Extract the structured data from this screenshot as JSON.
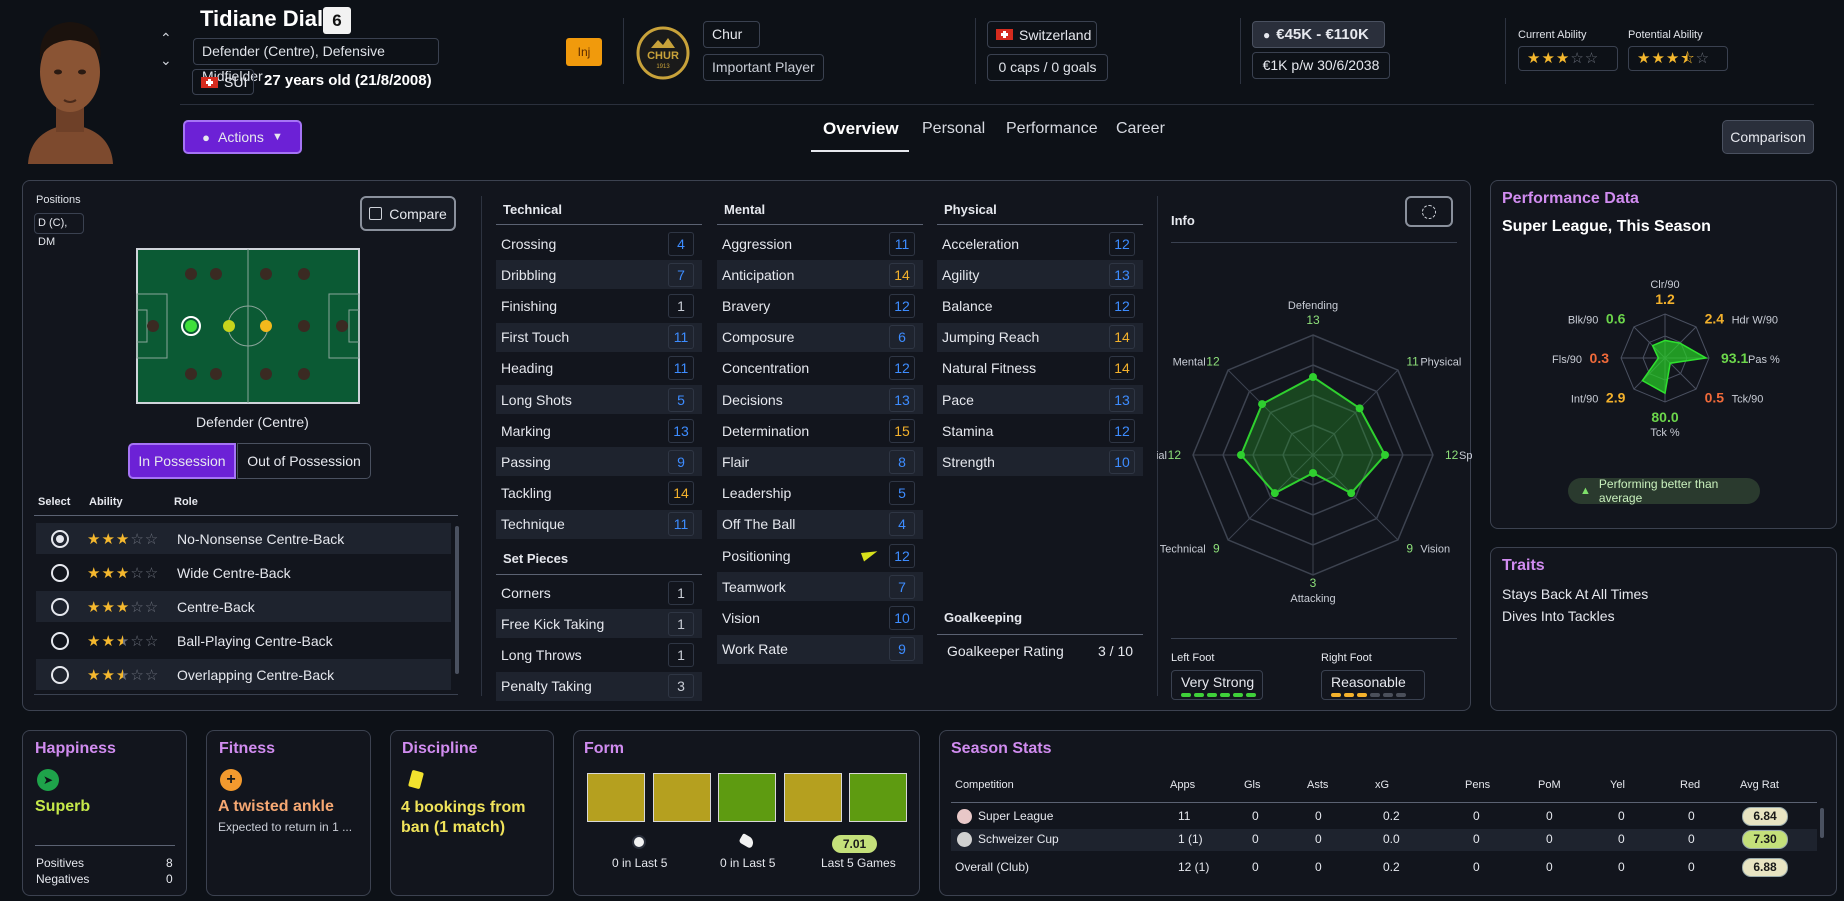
{
  "player": {
    "name": "Tidiane Diallo",
    "number": "6",
    "position": "Defender (Centre), Defensive Midfielder",
    "nation_code": "SUI",
    "age": "27 years old (21/8/2008)",
    "inj_badge": "Inj",
    "club": "Chur",
    "club_crest_text": "CHUR",
    "club_crest_year": "1913",
    "squad_status": "Important Player",
    "nationality": "Switzerland",
    "caps": "0 caps / 0 goals",
    "value": "€45K - €110K",
    "contract": "€1K p/w 30/6/2038",
    "ca_label": "Current Ability",
    "pa_label": "Potential Ability",
    "ca_stars": 3,
    "pa_stars": 3.5
  },
  "nav": {
    "actions": "Actions",
    "tabs": [
      "Overview",
      "Personal",
      "Performance",
      "Career"
    ],
    "comparison": "Comparison"
  },
  "positions": {
    "label": "Positions",
    "code": "D (C), DM",
    "compare": "Compare",
    "selected_position": "Defender (Centre)",
    "in_possession": "In Possession",
    "out_possession": "Out of Possession",
    "col_select": "Select",
    "col_ability": "Ability",
    "col_role": "Role",
    "roles": [
      {
        "name": "No-Nonsense Centre-Back",
        "stars": 3,
        "selected": true
      },
      {
        "name": "Wide Centre-Back",
        "stars": 3,
        "selected": false
      },
      {
        "name": "Centre-Back",
        "stars": 3,
        "selected": false
      },
      {
        "name": "Ball-Playing Centre-Back",
        "stars": 2.5,
        "selected": false
      },
      {
        "name": "Overlapping Centre-Back",
        "stars": 2.5,
        "selected": false
      }
    ]
  },
  "technical": {
    "title": "Technical",
    "attrs": [
      {
        "name": "Crossing",
        "value": "4",
        "color": "#3d8cff"
      },
      {
        "name": "Dribbling",
        "value": "7",
        "color": "#3d8cff"
      },
      {
        "name": "Finishing",
        "value": "1",
        "color": "#c9cdd6"
      },
      {
        "name": "First Touch",
        "value": "11",
        "color": "#3d8cff"
      },
      {
        "name": "Heading",
        "value": "11",
        "color": "#3d8cff"
      },
      {
        "name": "Long Shots",
        "value": "5",
        "color": "#3d8cff"
      },
      {
        "name": "Marking",
        "value": "13",
        "color": "#3d8cff"
      },
      {
        "name": "Passing",
        "value": "9",
        "color": "#3d8cff"
      },
      {
        "name": "Tackling",
        "value": "14",
        "color": "#f3b12c"
      },
      {
        "name": "Technique",
        "value": "11",
        "color": "#3d8cff"
      }
    ]
  },
  "set_pieces": {
    "title": "Set Pieces",
    "attrs": [
      {
        "name": "Corners",
        "value": "1",
        "color": "#c9cdd6"
      },
      {
        "name": "Free Kick Taking",
        "value": "1",
        "color": "#c9cdd6"
      },
      {
        "name": "Long Throws",
        "value": "1",
        "color": "#c9cdd6"
      },
      {
        "name": "Penalty Taking",
        "value": "3",
        "color": "#c9cdd6"
      }
    ]
  },
  "mental": {
    "title": "Mental",
    "attrs": [
      {
        "name": "Aggression",
        "value": "11",
        "color": "#3d8cff"
      },
      {
        "name": "Anticipation",
        "value": "14",
        "color": "#f3b12c"
      },
      {
        "name": "Bravery",
        "value": "12",
        "color": "#3d8cff"
      },
      {
        "name": "Composure",
        "value": "6",
        "color": "#3d8cff"
      },
      {
        "name": "Concentration",
        "value": "12",
        "color": "#3d8cff"
      },
      {
        "name": "Decisions",
        "value": "13",
        "color": "#3d8cff"
      },
      {
        "name": "Determination",
        "value": "15",
        "color": "#f3b12c"
      },
      {
        "name": "Flair",
        "value": "8",
        "color": "#3d8cff"
      },
      {
        "name": "Leadership",
        "value": "5",
        "color": "#3d8cff"
      },
      {
        "name": "Off The Ball",
        "value": "4",
        "color": "#3d8cff"
      },
      {
        "name": "Positioning",
        "value": "12",
        "color": "#3d8cff"
      },
      {
        "name": "Teamwork",
        "value": "7",
        "color": "#3d8cff"
      },
      {
        "name": "Vision",
        "value": "10",
        "color": "#3d8cff"
      },
      {
        "name": "Work Rate",
        "value": "9",
        "color": "#3d8cff"
      }
    ]
  },
  "physical": {
    "title": "Physical",
    "attrs": [
      {
        "name": "Acceleration",
        "value": "12",
        "color": "#3d8cff"
      },
      {
        "name": "Agility",
        "value": "13",
        "color": "#3d8cff"
      },
      {
        "name": "Balance",
        "value": "12",
        "color": "#3d8cff"
      },
      {
        "name": "Jumping Reach",
        "value": "14",
        "color": "#f3b12c"
      },
      {
        "name": "Natural Fitness",
        "value": "14",
        "color": "#f3b12c"
      },
      {
        "name": "Pace",
        "value": "13",
        "color": "#3d8cff"
      },
      {
        "name": "Stamina",
        "value": "12",
        "color": "#3d8cff"
      },
      {
        "name": "Strength",
        "value": "10",
        "color": "#3d8cff"
      }
    ]
  },
  "goalkeeping": {
    "title": "Goalkeeping",
    "label": "Goalkeeper Rating",
    "value": "3 / 10"
  },
  "info": {
    "title": "Info",
    "radar": [
      {
        "label": "Defending",
        "value": "13"
      },
      {
        "label": "Physical",
        "value": "11"
      },
      {
        "label": "Speed",
        "value": "12"
      },
      {
        "label": "Vision",
        "value": "9"
      },
      {
        "label": "Attacking",
        "value": "3"
      },
      {
        "label": "Technical",
        "value": "9"
      },
      {
        "label": "Aerial",
        "value": "12"
      },
      {
        "label": "Mental",
        "value": "12"
      }
    ],
    "left_foot_label": "Left Foot",
    "left_foot": "Very Strong",
    "left_foot_level": 6,
    "right_foot_label": "Right Foot",
    "right_foot": "Reasonable",
    "right_foot_level": 3
  },
  "performance": {
    "title": "Performance Data",
    "subtitle": "Super League, This Season",
    "stats": [
      {
        "label": "Clr/90",
        "value": "1.2",
        "color": "#f3b12c"
      },
      {
        "label": "Hdr W/90",
        "value": "2.4",
        "color": "#f3b12c"
      },
      {
        "label": "Pas %",
        "value": "93.1",
        "color": "#6cd64b"
      },
      {
        "label": "Tck/90",
        "value": "0.5",
        "color": "#f06a3a"
      },
      {
        "label": "Tck %",
        "value": "80.0",
        "color": "#6cd64b"
      },
      {
        "label": "Int/90",
        "value": "2.9",
        "color": "#f3b12c"
      },
      {
        "label": "Fls/90",
        "value": "0.3",
        "color": "#f06a3a"
      },
      {
        "label": "Blk/90",
        "value": "0.6",
        "color": "#6cd64b"
      }
    ],
    "badge": "Performing better than average"
  },
  "traits": {
    "title": "Traits",
    "items": [
      "Stays Back At All Times",
      "Dives Into Tackles"
    ]
  },
  "happiness": {
    "title": "Happiness",
    "status": "Superb",
    "positives_label": "Positives",
    "positives": "8",
    "negatives_label": "Negatives",
    "negatives": "0"
  },
  "fitness": {
    "title": "Fitness",
    "status": "A twisted ankle",
    "detail": "Expected to return in 1 ..."
  },
  "discipline": {
    "title": "Discipline",
    "status": "4 bookings from ban (1 match)"
  },
  "form": {
    "title": "Form",
    "bars": [
      "#b5a01f",
      "#b5a01f",
      "#5e9b11",
      "#b5a01f",
      "#5e9b11"
    ],
    "goals": "0 in Last 5",
    "assists": "0 in Last 5",
    "avg": "7.01",
    "avg_label": "Last 5 Games"
  },
  "season": {
    "title": "Season Stats",
    "headers": [
      "Competition",
      "Apps",
      "Gls",
      "Asts",
      "xG",
      "Pens",
      "PoM",
      "Yel",
      "Red",
      "Avg Rat"
    ],
    "rows": [
      [
        "Super League",
        "11",
        "0",
        "0",
        "0.2",
        "0",
        "0",
        "0",
        "0",
        "6.84"
      ],
      [
        "Schweizer Cup",
        "1 (1)",
        "0",
        "0",
        "0.0",
        "0",
        "0",
        "0",
        "0",
        "7.30"
      ],
      [
        "Overall (Club)",
        "12 (1)",
        "0",
        "0",
        "0.2",
        "0",
        "0",
        "0",
        "0",
        "6.88"
      ]
    ]
  }
}
